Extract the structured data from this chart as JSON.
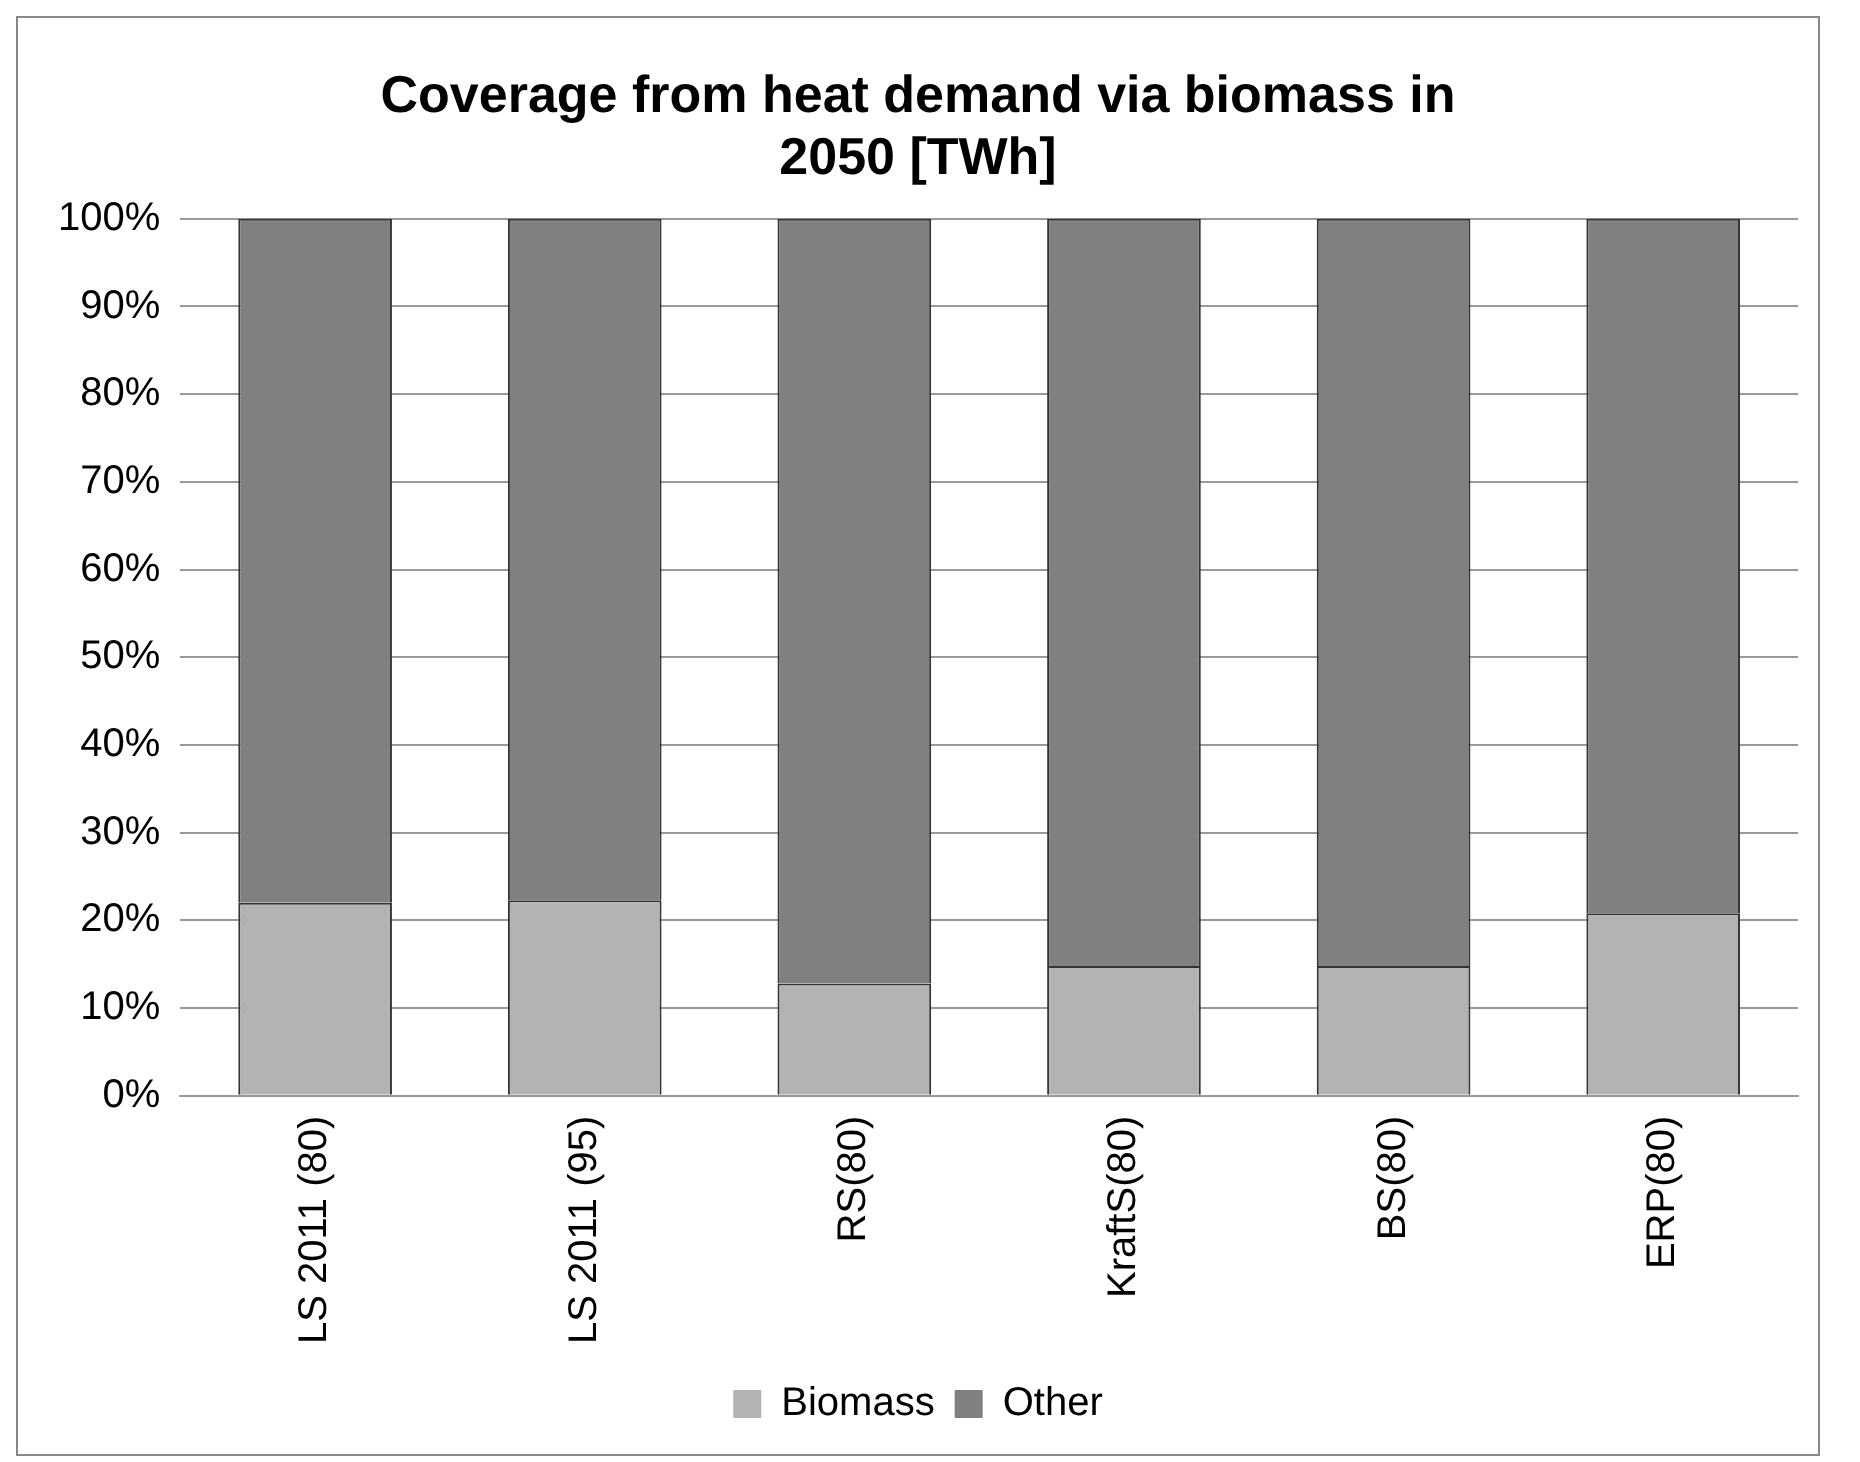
{
  "chart_data": {
    "type": "bar",
    "title": "Coverage from heat demand via biomass in 2050 [TWh]",
    "stacked": true,
    "categories": [
      "LS 2011 (80)",
      "LS 2011 (95)",
      "RS(80)",
      "KraftS(80)",
      "BS(80)",
      "ERP(80)"
    ],
    "series": [
      {
        "name": "Biomass",
        "color": "#b3b3b3",
        "values": [
          22,
          22.3,
          12.8,
          14.8,
          14.8,
          20.8
        ]
      },
      {
        "name": "Other",
        "color": "#808080",
        "values": [
          78,
          77.7,
          87.2,
          85.2,
          85.2,
          79.2
        ]
      }
    ],
    "ylim": [
      0,
      100
    ],
    "yticks": [
      {
        "value": 0,
        "label": "0%"
      },
      {
        "value": 10,
        "label": "10%"
      },
      {
        "value": 20,
        "label": "20%"
      },
      {
        "value": 30,
        "label": "30%"
      },
      {
        "value": 40,
        "label": "40%"
      },
      {
        "value": 50,
        "label": "50%"
      },
      {
        "value": 60,
        "label": "60%"
      },
      {
        "value": 70,
        "label": "70%"
      },
      {
        "value": 80,
        "label": "80%"
      },
      {
        "value": 90,
        "label": "90%"
      },
      {
        "value": 100,
        "label": "100%"
      }
    ],
    "grid": "y",
    "legend": "bottom"
  }
}
